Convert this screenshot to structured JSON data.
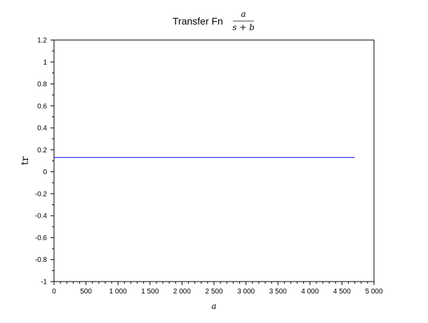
{
  "chart_data": {
    "type": "line",
    "title": "Transfer Fn",
    "title_formula": {
      "numerator": "a",
      "denominator": "s + b"
    },
    "xlabel": "a",
    "ylabel": "tr",
    "xlim": [
      0,
      5000
    ],
    "ylim": [
      -1,
      1.2
    ],
    "x_ticks": [
      0,
      500,
      1000,
      1500,
      2000,
      2500,
      3000,
      3500,
      4000,
      4500,
      5000
    ],
    "x_tick_labels": [
      "0",
      "500",
      "1 000",
      "1 500",
      "2 000",
      "2 500",
      "3 000",
      "3 500",
      "4 000",
      "4 500",
      "5 000"
    ],
    "y_ticks": [
      -1,
      -0.8,
      -0.6,
      -0.4,
      -0.2,
      0,
      0.2,
      0.4,
      0.6,
      0.8,
      1,
      1.2
    ],
    "y_tick_labels": [
      "-1",
      "-0.8",
      "-0.6",
      "-0.4",
      "-0.2",
      "0",
      "0.2",
      "0.4",
      "0.6",
      "0.8",
      "1",
      "1.2"
    ],
    "grid": false,
    "series": [
      {
        "color": "#0000ff",
        "x": [
          0,
          4700
        ],
        "y": [
          0.13,
          0.13
        ]
      }
    ]
  }
}
